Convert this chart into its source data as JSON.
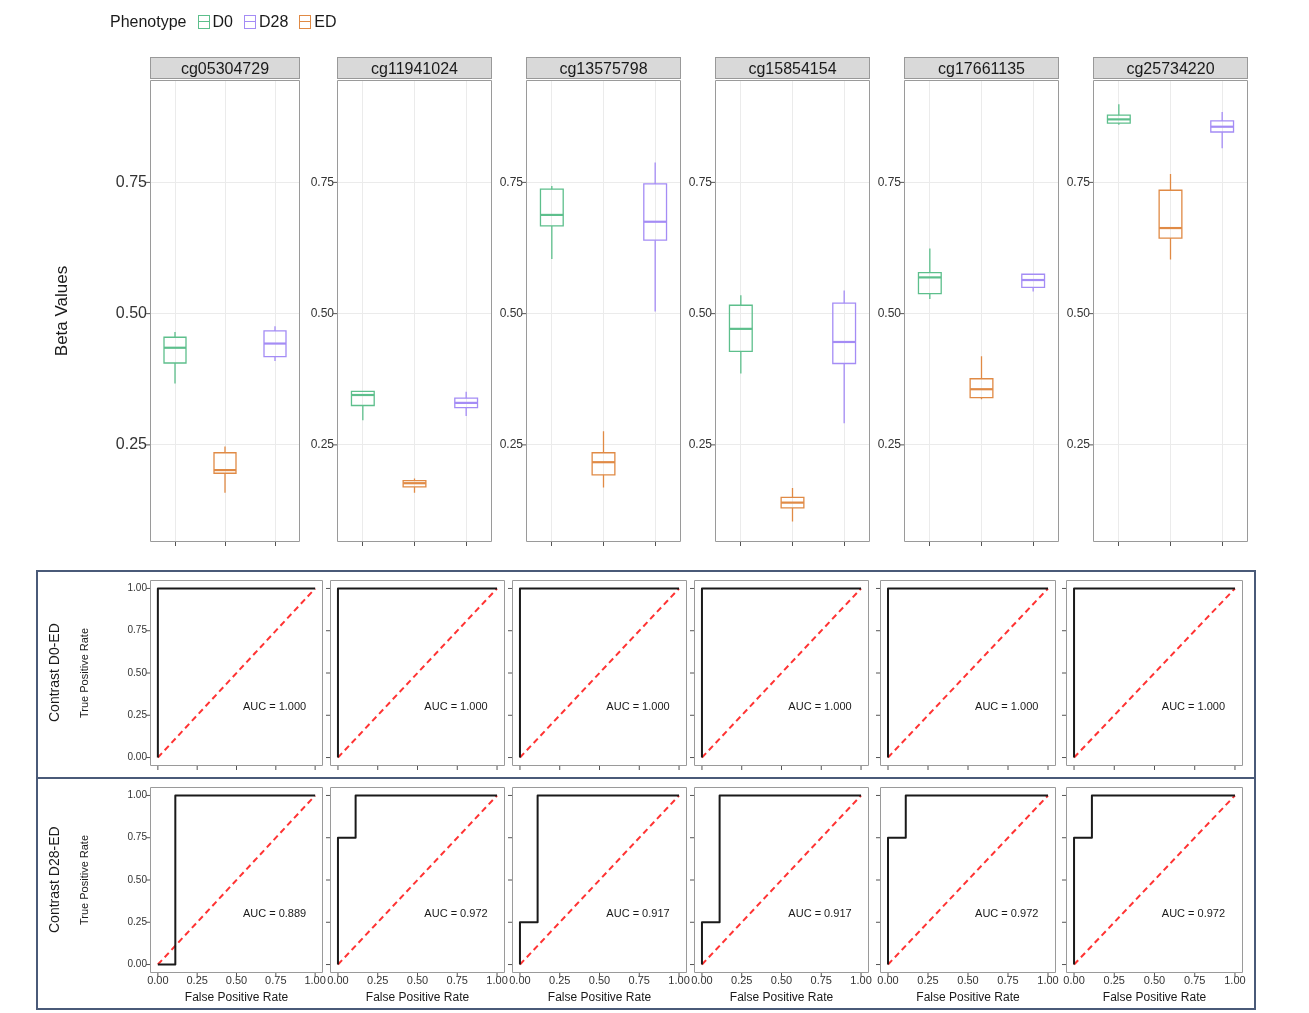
{
  "chart_data": [
    {
      "type": "box",
      "title": "cg05304729",
      "ylabel": "Beta Values",
      "legend": "top",
      "legend_title": "Phenotype",
      "categories": [
        null,
        null,
        null
      ],
      "ylim": [
        0.065,
        0.945
      ],
      "yticks": [
        {
          "value": 0.25,
          "label": "0.25"
        },
        {
          "value": 0.5,
          "label": "0.50"
        },
        {
          "value": 0.75,
          "label": "0.75"
        }
      ],
      "grid": true,
      "tick_labels": "y",
      "series": [
        {
          "name": "D0",
          "color": "#5dbf8c",
          "boxes": [
            {
              "low": 0.367,
              "q1": 0.406,
              "median": 0.435,
              "q3": 0.455,
              "high": 0.465
            },
            null,
            null
          ]
        },
        {
          "name": "D28",
          "color": "#a48cf5",
          "boxes": [
            null,
            null,
            {
              "low": 0.41,
              "q1": 0.418,
              "median": 0.443,
              "q3": 0.467,
              "high": 0.476
            }
          ]
        },
        {
          "name": "ED",
          "color": "#e08a45",
          "boxes": [
            null,
            {
              "low": 0.159,
              "q1": 0.196,
              "median": 0.202,
              "q3": 0.235,
              "high": 0.247
            },
            null
          ]
        }
      ]
    },
    {
      "type": "box",
      "title": "cg11941024",
      "categories": [
        null,
        null,
        null
      ],
      "ylim": [
        0.065,
        0.945
      ],
      "yticks": [
        {
          "value": 0.25,
          "label": "0.25"
        },
        {
          "value": 0.5,
          "label": "0.50"
        },
        {
          "value": 0.75,
          "label": "0.75"
        }
      ],
      "grid": true,
      "tick_labels": "y",
      "series": [
        {
          "color": "#5dbf8c",
          "boxes": [
            {
              "low": 0.297,
              "q1": 0.325,
              "median": 0.345,
              "q3": 0.352,
              "high": 0.352
            },
            null,
            null
          ]
        },
        {
          "color": "#a48cf5",
          "boxes": [
            null,
            null,
            {
              "low": 0.305,
              "q1": 0.321,
              "median": 0.33,
              "q3": 0.339,
              "high": 0.351
            }
          ]
        },
        {
          "color": "#e08a45",
          "boxes": [
            null,
            {
              "low": 0.159,
              "q1": 0.17,
              "median": 0.177,
              "q3": 0.182,
              "high": 0.186
            },
            null
          ]
        }
      ]
    },
    {
      "type": "box",
      "title": "cg13575798",
      "categories": [
        null,
        null,
        null
      ],
      "ylim": [
        0.065,
        0.945
      ],
      "yticks": [
        {
          "value": 0.25,
          "label": "0.25"
        },
        {
          "value": 0.5,
          "label": "0.50"
        },
        {
          "value": 0.75,
          "label": "0.75"
        }
      ],
      "grid": true,
      "tick_labels": "y",
      "series": [
        {
          "color": "#5dbf8c",
          "boxes": [
            {
              "low": 0.604,
              "q1": 0.667,
              "median": 0.688,
              "q3": 0.737,
              "high": 0.743
            },
            null,
            null
          ]
        },
        {
          "color": "#a48cf5",
          "boxes": [
            null,
            null,
            {
              "low": 0.504,
              "q1": 0.64,
              "median": 0.675,
              "q3": 0.747,
              "high": 0.788
            }
          ]
        },
        {
          "color": "#e08a45",
          "boxes": [
            null,
            {
              "low": 0.169,
              "q1": 0.193,
              "median": 0.217,
              "q3": 0.235,
              "high": 0.276
            },
            null
          ]
        }
      ]
    },
    {
      "type": "box",
      "title": "cg15854154",
      "categories": [
        null,
        null,
        null
      ],
      "ylim": [
        0.065,
        0.945
      ],
      "yticks": [
        {
          "value": 0.25,
          "label": "0.25"
        },
        {
          "value": 0.5,
          "label": "0.50"
        },
        {
          "value": 0.75,
          "label": "0.75"
        }
      ],
      "grid": true,
      "tick_labels": "y",
      "series": [
        {
          "color": "#5dbf8c",
          "boxes": [
            {
              "low": 0.386,
              "q1": 0.428,
              "median": 0.471,
              "q3": 0.516,
              "high": 0.535
            },
            null,
            null
          ]
        },
        {
          "color": "#a48cf5",
          "boxes": [
            null,
            null,
            {
              "low": 0.291,
              "q1": 0.405,
              "median": 0.446,
              "q3": 0.52,
              "high": 0.544
            }
          ]
        },
        {
          "color": "#e08a45",
          "boxes": [
            null,
            {
              "low": 0.104,
              "q1": 0.13,
              "median": 0.14,
              "q3": 0.15,
              "high": 0.168
            },
            null
          ]
        }
      ]
    },
    {
      "type": "box",
      "title": "cg17661135",
      "categories": [
        null,
        null,
        null
      ],
      "ylim": [
        0.065,
        0.945
      ],
      "yticks": [
        {
          "value": 0.25,
          "label": "0.25"
        },
        {
          "value": 0.5,
          "label": "0.50"
        },
        {
          "value": 0.75,
          "label": "0.75"
        }
      ],
      "grid": true,
      "tick_labels": "y",
      "series": [
        {
          "color": "#5dbf8c",
          "boxes": [
            {
              "low": 0.528,
              "q1": 0.538,
              "median": 0.569,
              "q3": 0.578,
              "high": 0.624
            },
            null,
            null
          ]
        },
        {
          "color": "#a48cf5",
          "boxes": [
            null,
            null,
            {
              "low": 0.542,
              "q1": 0.55,
              "median": 0.564,
              "q3": 0.575,
              "high": 0.575
            }
          ]
        },
        {
          "color": "#e08a45",
          "boxes": [
            null,
            {
              "low": 0.337,
              "q1": 0.34,
              "median": 0.356,
              "q3": 0.376,
              "high": 0.419
            },
            null
          ]
        }
      ]
    },
    {
      "type": "box",
      "title": "cg25734220",
      "categories": [
        null,
        null,
        null
      ],
      "ylim": [
        0.065,
        0.945
      ],
      "yticks": [
        {
          "value": 0.25,
          "label": "0.25"
        },
        {
          "value": 0.5,
          "label": "0.50"
        },
        {
          "value": 0.75,
          "label": "0.75"
        }
      ],
      "grid": true,
      "tick_labels": "y",
      "series": [
        {
          "color": "#5dbf8c",
          "boxes": [
            {
              "low": 0.86,
              "q1": 0.863,
              "median": 0.87,
              "q3": 0.878,
              "high": 0.899
            },
            null,
            null
          ]
        },
        {
          "color": "#a48cf5",
          "boxes": [
            null,
            null,
            {
              "low": 0.815,
              "q1": 0.846,
              "median": 0.856,
              "q3": 0.867,
              "high": 0.884
            }
          ]
        },
        {
          "color": "#e08a45",
          "boxes": [
            null,
            {
              "low": 0.603,
              "q1": 0.644,
              "median": 0.663,
              "q3": 0.735,
              "high": 0.766
            },
            null
          ]
        }
      ]
    },
    {
      "type": "line",
      "subtitle": "Contrast D0-ED",
      "ylabel": "True Positive Rate",
      "annotations": [
        "AUC = 1.000"
      ],
      "xlim": [
        -0.05,
        1.05
      ],
      "ylim": [
        -0.05,
        1.05
      ],
      "xticks": [
        {
          "value": 0,
          "label": null
        },
        {
          "value": 0.25,
          "label": null
        },
        {
          "value": 0.5,
          "label": null
        },
        {
          "value": 0.75,
          "label": null
        },
        {
          "value": 1,
          "label": null
        }
      ],
      "yticks": [
        {
          "value": 0,
          "label": "0.00"
        },
        {
          "value": 0.25,
          "label": "0.25"
        },
        {
          "value": 0.5,
          "label": "0.50"
        },
        {
          "value": 0.75,
          "label": "0.75"
        },
        {
          "value": 1,
          "label": "1.00"
        }
      ],
      "tick_labels": "y",
      "series": [
        {
          "color": "#1a1a1a",
          "x": [
            0,
            0,
            1
          ],
          "values": [
            0,
            1,
            1
          ]
        },
        {
          "color": "#ff3333",
          "line_style": "dashed",
          "x": [
            0,
            1
          ],
          "values": [
            0,
            1
          ]
        }
      ]
    },
    {
      "type": "line",
      "annotations": [
        "AUC = 1.000"
      ],
      "xlim": [
        -0.05,
        1.05
      ],
      "ylim": [
        -0.05,
        1.05
      ],
      "xticks": [
        {
          "value": 0,
          "label": null
        },
        {
          "value": 0.25,
          "label": null
        },
        {
          "value": 0.5,
          "label": null
        },
        {
          "value": 0.75,
          "label": null
        },
        {
          "value": 1,
          "label": null
        }
      ],
      "yticks": [
        {
          "value": 0,
          "label": null
        },
        {
          "value": 0.25,
          "label": null
        },
        {
          "value": 0.5,
          "label": null
        },
        {
          "value": 0.75,
          "label": null
        },
        {
          "value": 1,
          "label": null
        }
      ],
      "tick_labels": false,
      "series": [
        {
          "color": "#1a1a1a",
          "x": [
            0,
            0,
            1
          ],
          "values": [
            0,
            1,
            1
          ]
        },
        {
          "color": "#ff3333",
          "line_style": "dashed",
          "x": [
            0,
            1
          ],
          "values": [
            0,
            1
          ]
        }
      ]
    },
    {
      "type": "line",
      "annotations": [
        "AUC = 1.000"
      ],
      "xlim": [
        -0.05,
        1.05
      ],
      "ylim": [
        -0.05,
        1.05
      ],
      "xticks": [
        {
          "value": 0,
          "label": null
        },
        {
          "value": 0.25,
          "label": null
        },
        {
          "value": 0.5,
          "label": null
        },
        {
          "value": 0.75,
          "label": null
        },
        {
          "value": 1,
          "label": null
        }
      ],
      "yticks": [
        {
          "value": 0,
          "label": null
        },
        {
          "value": 0.25,
          "label": null
        },
        {
          "value": 0.5,
          "label": null
        },
        {
          "value": 0.75,
          "label": null
        },
        {
          "value": 1,
          "label": null
        }
      ],
      "tick_labels": false,
      "series": [
        {
          "color": "#1a1a1a",
          "x": [
            0,
            0,
            1
          ],
          "values": [
            0,
            1,
            1
          ]
        },
        {
          "color": "#ff3333",
          "line_style": "dashed",
          "x": [
            0,
            1
          ],
          "values": [
            0,
            1
          ]
        }
      ]
    },
    {
      "type": "line",
      "annotations": [
        "AUC = 1.000"
      ],
      "xlim": [
        -0.05,
        1.05
      ],
      "ylim": [
        -0.05,
        1.05
      ],
      "xticks": [
        {
          "value": 0,
          "label": null
        },
        {
          "value": 0.25,
          "label": null
        },
        {
          "value": 0.5,
          "label": null
        },
        {
          "value": 0.75,
          "label": null
        },
        {
          "value": 1,
          "label": null
        }
      ],
      "yticks": [
        {
          "value": 0,
          "label": null
        },
        {
          "value": 0.25,
          "label": null
        },
        {
          "value": 0.5,
          "label": null
        },
        {
          "value": 0.75,
          "label": null
        },
        {
          "value": 1,
          "label": null
        }
      ],
      "tick_labels": false,
      "series": [
        {
          "color": "#1a1a1a",
          "x": [
            0,
            0,
            1
          ],
          "values": [
            0,
            1,
            1
          ]
        },
        {
          "color": "#ff3333",
          "line_style": "dashed",
          "x": [
            0,
            1
          ],
          "values": [
            0,
            1
          ]
        }
      ]
    },
    {
      "type": "line",
      "annotations": [
        "AUC = 1.000"
      ],
      "xlim": [
        -0.05,
        1.05
      ],
      "ylim": [
        -0.05,
        1.05
      ],
      "xticks": [
        {
          "value": 0,
          "label": null
        },
        {
          "value": 0.25,
          "label": null
        },
        {
          "value": 0.5,
          "label": null
        },
        {
          "value": 0.75,
          "label": null
        },
        {
          "value": 1,
          "label": null
        }
      ],
      "yticks": [
        {
          "value": 0,
          "label": null
        },
        {
          "value": 0.25,
          "label": null
        },
        {
          "value": 0.5,
          "label": null
        },
        {
          "value": 0.75,
          "label": null
        },
        {
          "value": 1,
          "label": null
        }
      ],
      "tick_labels": false,
      "series": [
        {
          "color": "#1a1a1a",
          "x": [
            0,
            0,
            1
          ],
          "values": [
            0,
            1,
            1
          ]
        },
        {
          "color": "#ff3333",
          "line_style": "dashed",
          "x": [
            0,
            1
          ],
          "values": [
            0,
            1
          ]
        }
      ]
    },
    {
      "type": "line",
      "annotations": [
        "AUC = 1.000"
      ],
      "xlim": [
        -0.05,
        1.05
      ],
      "ylim": [
        -0.05,
        1.05
      ],
      "xticks": [
        {
          "value": 0,
          "label": null
        },
        {
          "value": 0.25,
          "label": null
        },
        {
          "value": 0.5,
          "label": null
        },
        {
          "value": 0.75,
          "label": null
        },
        {
          "value": 1,
          "label": null
        }
      ],
      "yticks": [
        {
          "value": 0,
          "label": null
        },
        {
          "value": 0.25,
          "label": null
        },
        {
          "value": 0.5,
          "label": null
        },
        {
          "value": 0.75,
          "label": null
        },
        {
          "value": 1,
          "label": null
        }
      ],
      "tick_labels": false,
      "series": [
        {
          "color": "#1a1a1a",
          "x": [
            0,
            0,
            1
          ],
          "values": [
            0,
            1,
            1
          ]
        },
        {
          "color": "#ff3333",
          "line_style": "dashed",
          "x": [
            0,
            1
          ],
          "values": [
            0,
            1
          ]
        }
      ]
    },
    {
      "type": "line",
      "subtitle": "Contrast D28-ED",
      "xlabel": "False Positive Rate",
      "ylabel": "True Positive Rate",
      "annotations": [
        "AUC = 0.889"
      ],
      "xlim": [
        -0.05,
        1.05
      ],
      "ylim": [
        -0.05,
        1.05
      ],
      "xticks": [
        {
          "value": 0,
          "label": "0.00"
        },
        {
          "value": 0.25,
          "label": "0.25"
        },
        {
          "value": 0.5,
          "label": "0.50"
        },
        {
          "value": 0.75,
          "label": "0.75"
        },
        {
          "value": 1,
          "label": "1.00"
        }
      ],
      "yticks": [
        {
          "value": 0,
          "label": "0.00"
        },
        {
          "value": 0.25,
          "label": "0.25"
        },
        {
          "value": 0.5,
          "label": "0.50"
        },
        {
          "value": 0.75,
          "label": "0.75"
        },
        {
          "value": 1,
          "label": "1.00"
        }
      ],
      "series": [
        {
          "color": "#1a1a1a",
          "x": [
            0,
            0.111,
            0.111,
            1
          ],
          "values": [
            0,
            0,
            1,
            1
          ]
        },
        {
          "color": "#ff3333",
          "line_style": "dashed",
          "x": [
            0,
            1
          ],
          "values": [
            0,
            1
          ]
        }
      ]
    },
    {
      "type": "line",
      "xlabel": "False Positive Rate",
      "annotations": [
        "AUC = 0.972"
      ],
      "xlim": [
        -0.05,
        1.05
      ],
      "ylim": [
        -0.05,
        1.05
      ],
      "xticks": [
        {
          "value": 0,
          "label": "0.00"
        },
        {
          "value": 0.25,
          "label": "0.25"
        },
        {
          "value": 0.5,
          "label": "0.50"
        },
        {
          "value": 0.75,
          "label": "0.75"
        },
        {
          "value": 1,
          "label": "1.00"
        }
      ],
      "yticks": [
        {
          "value": 0,
          "label": null
        },
        {
          "value": 0.25,
          "label": null
        },
        {
          "value": 0.5,
          "label": null
        },
        {
          "value": 0.75,
          "label": null
        },
        {
          "value": 1,
          "label": null
        }
      ],
      "tick_labels": "x",
      "series": [
        {
          "color": "#1a1a1a",
          "x": [
            0,
            0,
            0.111,
            0.111,
            1
          ],
          "values": [
            0,
            0.75,
            0.75,
            1,
            1
          ]
        },
        {
          "color": "#ff3333",
          "line_style": "dashed",
          "x": [
            0,
            1
          ],
          "values": [
            0,
            1
          ]
        }
      ]
    },
    {
      "type": "line",
      "xlabel": "False Positive Rate",
      "annotations": [
        "AUC = 0.917"
      ],
      "xlim": [
        -0.05,
        1.05
      ],
      "ylim": [
        -0.05,
        1.05
      ],
      "xticks": [
        {
          "value": 0,
          "label": "0.00"
        },
        {
          "value": 0.25,
          "label": "0.25"
        },
        {
          "value": 0.5,
          "label": "0.50"
        },
        {
          "value": 0.75,
          "label": "0.75"
        },
        {
          "value": 1,
          "label": "1.00"
        }
      ],
      "yticks": [
        {
          "value": 0,
          "label": null
        },
        {
          "value": 0.25,
          "label": null
        },
        {
          "value": 0.5,
          "label": null
        },
        {
          "value": 0.75,
          "label": null
        },
        {
          "value": 1,
          "label": null
        }
      ],
      "tick_labels": "x",
      "series": [
        {
          "color": "#1a1a1a",
          "x": [
            0,
            0,
            0.111,
            0.111,
            1
          ],
          "values": [
            0,
            0.25,
            0.25,
            1,
            1
          ]
        },
        {
          "color": "#ff3333",
          "line_style": "dashed",
          "x": [
            0,
            1
          ],
          "values": [
            0,
            1
          ]
        }
      ]
    },
    {
      "type": "line",
      "xlabel": "False Positive Rate",
      "annotations": [
        "AUC = 0.917"
      ],
      "xlim": [
        -0.05,
        1.05
      ],
      "ylim": [
        -0.05,
        1.05
      ],
      "xticks": [
        {
          "value": 0,
          "label": "0.00"
        },
        {
          "value": 0.25,
          "label": "0.25"
        },
        {
          "value": 0.5,
          "label": "0.50"
        },
        {
          "value": 0.75,
          "label": "0.75"
        },
        {
          "value": 1,
          "label": "1.00"
        }
      ],
      "yticks": [
        {
          "value": 0,
          "label": null
        },
        {
          "value": 0.25,
          "label": null
        },
        {
          "value": 0.5,
          "label": null
        },
        {
          "value": 0.75,
          "label": null
        },
        {
          "value": 1,
          "label": null
        }
      ],
      "tick_labels": "x",
      "series": [
        {
          "color": "#1a1a1a",
          "x": [
            0,
            0,
            0.111,
            0.111,
            1
          ],
          "values": [
            0,
            0.25,
            0.25,
            1,
            1
          ]
        },
        {
          "color": "#ff3333",
          "line_style": "dashed",
          "x": [
            0,
            1
          ],
          "values": [
            0,
            1
          ]
        }
      ]
    },
    {
      "type": "line",
      "xlabel": "False Positive Rate",
      "annotations": [
        "AUC = 0.972"
      ],
      "xlim": [
        -0.05,
        1.05
      ],
      "ylim": [
        -0.05,
        1.05
      ],
      "xticks": [
        {
          "value": 0,
          "label": "0.00"
        },
        {
          "value": 0.25,
          "label": "0.25"
        },
        {
          "value": 0.5,
          "label": "0.50"
        },
        {
          "value": 0.75,
          "label": "0.75"
        },
        {
          "value": 1,
          "label": "1.00"
        }
      ],
      "yticks": [
        {
          "value": 0,
          "label": null
        },
        {
          "value": 0.25,
          "label": null
        },
        {
          "value": 0.5,
          "label": null
        },
        {
          "value": 0.75,
          "label": null
        },
        {
          "value": 1,
          "label": null
        }
      ],
      "tick_labels": "x",
      "series": [
        {
          "color": "#1a1a1a",
          "x": [
            0,
            0,
            0.111,
            0.111,
            1
          ],
          "values": [
            0,
            0.75,
            0.75,
            1,
            1
          ]
        },
        {
          "color": "#ff3333",
          "line_style": "dashed",
          "x": [
            0,
            1
          ],
          "values": [
            0,
            1
          ]
        }
      ]
    },
    {
      "type": "line",
      "xlabel": "False Positive Rate",
      "annotations": [
        "AUC = 0.972"
      ],
      "xlim": [
        -0.05,
        1.05
      ],
      "ylim": [
        -0.05,
        1.05
      ],
      "xticks": [
        {
          "value": 0,
          "label": "0.00"
        },
        {
          "value": 0.25,
          "label": "0.25"
        },
        {
          "value": 0.5,
          "label": "0.50"
        },
        {
          "value": 0.75,
          "label": "0.75"
        },
        {
          "value": 1,
          "label": "1.00"
        }
      ],
      "yticks": [
        {
          "value": 0,
          "label": null
        },
        {
          "value": 0.25,
          "label": null
        },
        {
          "value": 0.5,
          "label": null
        },
        {
          "value": 0.75,
          "label": null
        },
        {
          "value": 1,
          "label": null
        }
      ],
      "tick_labels": "x",
      "series": [
        {
          "color": "#1a1a1a",
          "x": [
            0,
            0,
            0.111,
            0.111,
            1
          ],
          "values": [
            0,
            0.75,
            0.75,
            1,
            1
          ]
        },
        {
          "color": "#ff3333",
          "line_style": "dashed",
          "x": [
            0,
            1
          ],
          "values": [
            0,
            1
          ]
        }
      ]
    }
  ]
}
